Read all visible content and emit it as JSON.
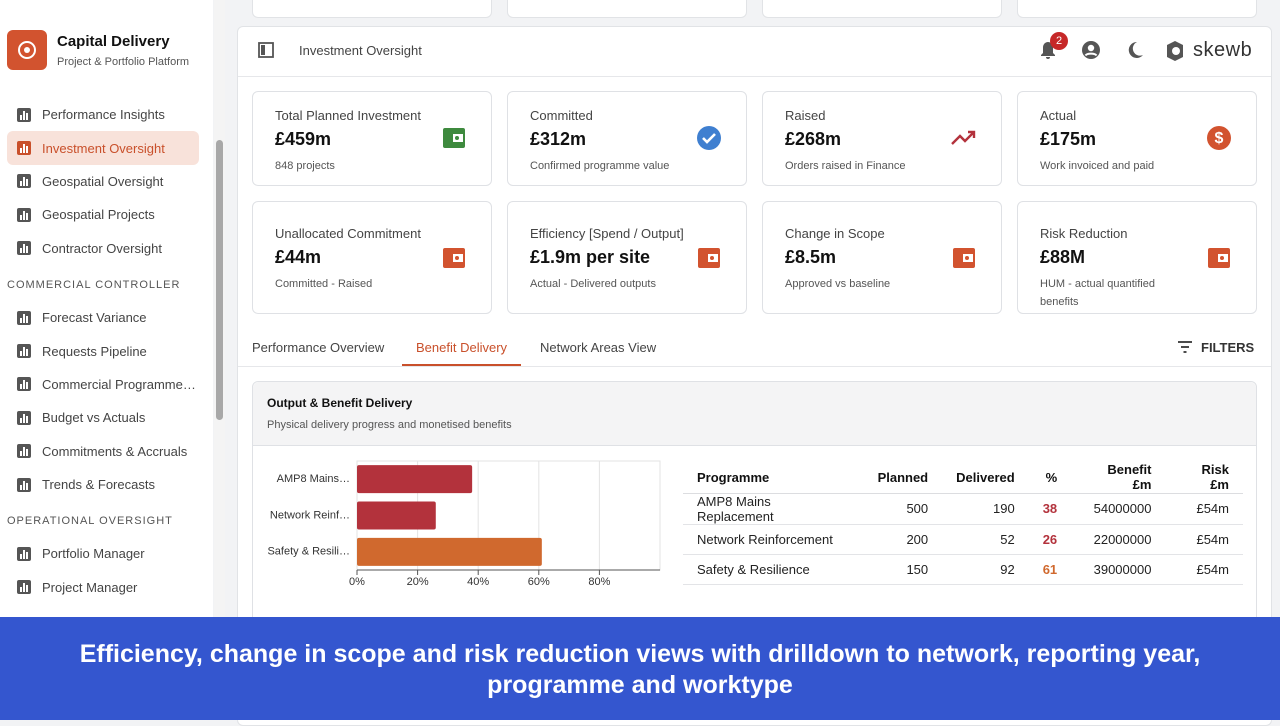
{
  "sidebar": {
    "brand": {
      "title": "Capital Delivery",
      "subtitle": "Project & Portfolio Platform"
    },
    "groups": [
      {
        "items": [
          "Performance Insights",
          "Investment Oversight",
          "Geospatial Oversight",
          "Geospatial Projects",
          "Contractor Oversight"
        ]
      },
      {
        "heading": "Commercial Controller",
        "items": [
          "Forecast Variance",
          "Requests Pipeline",
          "Commercial Programme…",
          "Budget vs Actuals",
          "Commitments & Accruals",
          "Trends & Forecasts"
        ]
      },
      {
        "heading": "Operational Oversight",
        "items": [
          "Portfolio Manager",
          "Project Manager"
        ]
      }
    ],
    "active": "Investment Oversight"
  },
  "header": {
    "title": "Investment Oversight",
    "notifications": 2,
    "logo": "skewb"
  },
  "kpis": [
    {
      "label": "Total Planned Investment",
      "value": "£459m",
      "note": "848 projects"
    },
    {
      "label": "Committed",
      "value": "£312m",
      "note": "Confirmed programme value"
    },
    {
      "label": "Raised",
      "value": "£268m",
      "note": "Orders raised in Finance"
    },
    {
      "label": "Actual",
      "value": "£175m",
      "note": "Work invoiced and paid"
    },
    {
      "label": "Unallocated Commitment",
      "value": "£44m",
      "note": "Committed - Raised"
    },
    {
      "label": "Efficiency [Spend / Output]",
      "value": "£1.9m per site",
      "note": "Actual - Delivered outputs"
    },
    {
      "label": "Change in Scope",
      "value": "£8.5m",
      "note": "Approved vs baseline"
    },
    {
      "label": "Risk Reduction",
      "value": "£88M",
      "note": "HUM - actual quantified benefits"
    }
  ],
  "tabs": {
    "items": [
      "Performance Overview",
      "Benefit Delivery",
      "Network Areas View"
    ],
    "active": "Benefit Delivery",
    "filters": "FILTERS"
  },
  "panel": {
    "title": "Output & Benefit Delivery",
    "subtitle": "Physical delivery progress and monetised benefits",
    "chart_data": {
      "type": "hbar",
      "categories": [
        "AMP8 Mains…",
        "Network Reinf…",
        "Safety & Resili…"
      ],
      "values": [
        38,
        26,
        61
      ],
      "colors": [
        "#b3323c",
        "#b3323c",
        "#d0692e"
      ],
      "xlim": [
        0,
        100
      ],
      "xticks": [
        {
          "value": 0,
          "label": "0%"
        },
        {
          "value": 20,
          "label": "20%"
        },
        {
          "value": 40,
          "label": "40%"
        },
        {
          "value": 60,
          "label": "60%"
        },
        {
          "value": 80,
          "label": "80%"
        }
      ],
      "grid": true
    },
    "table": {
      "columns": [
        "Programme",
        "Planned",
        "Delivered",
        "%",
        "Benefit £m",
        "Risk £m"
      ],
      "rows": [
        [
          "AMP8 Mains Replacement",
          500,
          190,
          38,
          54000000,
          "£54m"
        ],
        [
          "Network Reinforcement",
          200,
          52,
          26,
          22000000,
          "£54m"
        ],
        [
          "Safety & Resilience",
          150,
          92,
          61,
          39000000,
          "£54m"
        ]
      ],
      "pct_colors": [
        "#b3323c",
        "#b3323c",
        "#d0692e"
      ]
    }
  },
  "caption": "Efficiency, change in scope and risk reduction views with drilldown to network, reporting year, programme and worktype"
}
